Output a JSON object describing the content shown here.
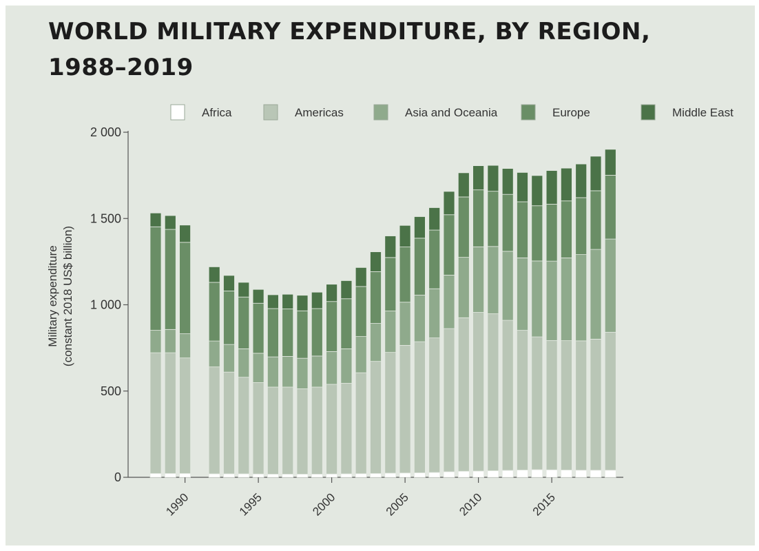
{
  "chart_data": {
    "type": "bar",
    "stacked": true,
    "title": "WORLD MILITARY EXPENDITURE, BY REGION, 1988–2019",
    "ylabel": "Military expenditure (constant 2018 US$ billion)",
    "xlabel": "",
    "ylim": [
      0,
      2000
    ],
    "yticks": [
      "0",
      "500",
      "1 000",
      "1 500",
      "2 000"
    ],
    "yticks_values": [
      0,
      500,
      1000,
      1500,
      2000
    ],
    "xticks": [
      "1990",
      "1995",
      "2000",
      "2005",
      "2010",
      "2015"
    ],
    "xticks_values": [
      1990,
      1995,
      2000,
      2005,
      2010,
      2015
    ],
    "legend_position": "top",
    "categories": [
      1988,
      1989,
      1990,
      1991,
      1992,
      1993,
      1994,
      1995,
      1996,
      1997,
      1998,
      1999,
      2000,
      2001,
      2002,
      2003,
      2004,
      2005,
      2006,
      2007,
      2008,
      2009,
      2010,
      2011,
      2012,
      2013,
      2014,
      2015,
      2016,
      2017,
      2018,
      2019
    ],
    "series": [
      {
        "name": "Africa",
        "color": "#ffffff",
        "values": [
          22,
          22,
          22,
          null,
          20,
          20,
          20,
          19,
          18,
          18,
          18,
          18,
          19,
          20,
          21,
          22,
          24,
          25,
          26,
          28,
          32,
          35,
          36,
          38,
          40,
          42,
          44,
          43,
          42,
          41,
          41,
          41
        ]
      },
      {
        "name": "Americas",
        "color": "#b9c6b6",
        "values": [
          700,
          700,
          670,
          null,
          620,
          590,
          560,
          530,
          505,
          505,
          495,
          505,
          520,
          525,
          585,
          650,
          700,
          740,
          760,
          780,
          830,
          890,
          920,
          910,
          870,
          810,
          770,
          750,
          750,
          750,
          760,
          800
        ]
      },
      {
        "name": "Asia and Oceania",
        "color": "#8faa8c",
        "values": [
          130,
          135,
          140,
          null,
          150,
          160,
          165,
          170,
          175,
          178,
          177,
          180,
          190,
          200,
          210,
          220,
          240,
          250,
          270,
          285,
          310,
          350,
          380,
          390,
          400,
          420,
          440,
          460,
          480,
          500,
          520,
          540
        ]
      },
      {
        "name": "Europe",
        "color": "#6a8e66",
        "values": [
          600,
          580,
          530,
          null,
          340,
          310,
          300,
          290,
          280,
          275,
          275,
          275,
          290,
          290,
          290,
          300,
          310,
          320,
          330,
          340,
          350,
          350,
          330,
          320,
          330,
          325,
          320,
          330,
          330,
          330,
          340,
          370
        ]
      },
      {
        "name": "Middle East",
        "color": "#4b7348",
        "values": [
          80,
          80,
          100,
          null,
          90,
          90,
          85,
          80,
          80,
          85,
          90,
          95,
          100,
          105,
          110,
          115,
          125,
          125,
          125,
          130,
          135,
          140,
          140,
          150,
          150,
          170,
          175,
          195,
          190,
          195,
          200,
          150
        ]
      }
    ]
  }
}
